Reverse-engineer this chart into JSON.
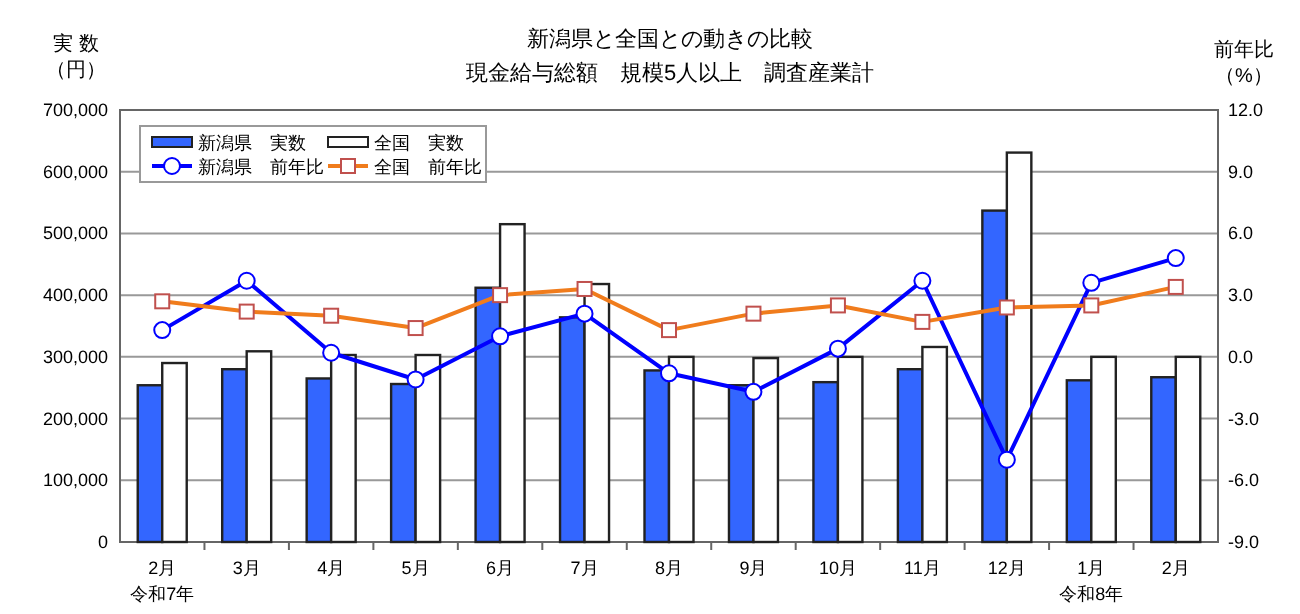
{
  "chart_data": {
    "type": "bar",
    "title": "新潟県と全国との動きの比較",
    "subtitle": "現金給与総額　規模5人以上　調査産業計",
    "ylabel": "実 数（円）",
    "y2label": "前年比（%）",
    "categories": [
      "2月",
      "3月",
      "4月",
      "5月",
      "6月",
      "7月",
      "8月",
      "9月",
      "10月",
      "11月",
      "12月",
      "1月",
      "2月"
    ],
    "annotations": [
      "令和7年",
      "令和8年"
    ],
    "ylim": [
      0,
      700000
    ],
    "yticks": [
      {
        "value": 0,
        "label": "0"
      },
      {
        "value": 100000,
        "label": "100,000"
      },
      {
        "value": 200000,
        "label": "200,000"
      },
      {
        "value": 300000,
        "label": "300,000"
      },
      {
        "value": 400000,
        "label": "400,000"
      },
      {
        "value": 500000,
        "label": "500,000"
      },
      {
        "value": 600000,
        "label": "600,000"
      },
      {
        "value": 700000,
        "label": "700,000"
      }
    ],
    "y2lim": [
      -9,
      12
    ],
    "y2ticks": [
      {
        "value": -9,
        "label": "-9.0"
      },
      {
        "value": -6,
        "label": "-6.0"
      },
      {
        "value": -3,
        "label": "-3.0"
      },
      {
        "value": 0,
        "label": "0.0"
      },
      {
        "value": 3,
        "label": "3.0"
      },
      {
        "value": 6,
        "label": "6.0"
      },
      {
        "value": 9,
        "label": "9.0"
      },
      {
        "value": 12,
        "label": "12.0"
      }
    ],
    "grid": "y",
    "legend": "top left",
    "series": [
      {
        "name": "新潟県　実数",
        "color": "#3366ff",
        "values": [
          254000,
          280000,
          265000,
          256000,
          412000,
          364000,
          278000,
          254000,
          259000,
          280000,
          537000,
          262000,
          267000
        ]
      },
      {
        "name": "全国　実数",
        "color": "#ffffff",
        "values": [
          290000,
          309000,
          303000,
          303000,
          515000,
          418000,
          300000,
          298000,
          300000,
          316000,
          631000,
          300000,
          300000
        ]
      },
      {
        "name": "新潟県　前年比",
        "type": "line",
        "axis": "y2",
        "marker": "circle",
        "color": "#0000ff",
        "values": [
          1.3,
          3.7,
          0.2,
          -1.1,
          1.0,
          2.1,
          -0.8,
          -1.7,
          0.4,
          3.7,
          -5.0,
          3.6,
          4.8
        ]
      },
      {
        "name": "全国　前年比",
        "type": "line",
        "axis": "y2",
        "marker": "square",
        "color": "#f07c1c",
        "values": [
          2.7,
          2.2,
          2.0,
          1.4,
          3.0,
          3.3,
          1.3,
          2.1,
          2.5,
          1.7,
          2.4,
          2.5,
          3.4
        ]
      }
    ]
  }
}
